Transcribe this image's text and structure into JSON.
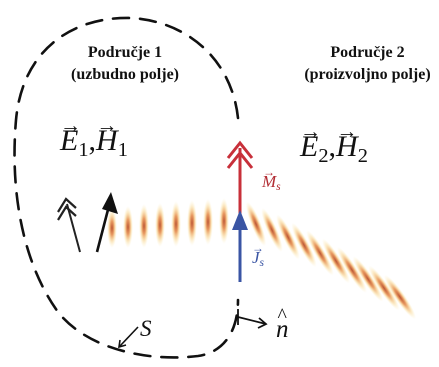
{
  "region1": {
    "title_line1": "Područje 1",
    "title_line2": "(uzbudno polje)",
    "field_e": "E",
    "field_e_sub": "1",
    "separator": ",",
    "field_h": "H",
    "field_h_sub": "1"
  },
  "region2": {
    "title_line1": "Područje 2",
    "title_line2": "(proizvoljno polje)",
    "field_e": "E",
    "field_e_sub": "2",
    "separator": ",",
    "field_h": "H",
    "field_h_sub": "2"
  },
  "sources": {
    "magnetic": "M",
    "magnetic_sub": "s",
    "electric": "J",
    "electric_sub": "s"
  },
  "boundary_label": "S",
  "normal_label": "n",
  "colors": {
    "magnetic_source": "#c8303a",
    "electric_source": "#3a55a4",
    "beam": "#d0642e",
    "line": "#111111"
  },
  "icons": {
    "vector_arrow": "→",
    "unit_hat": "^"
  }
}
